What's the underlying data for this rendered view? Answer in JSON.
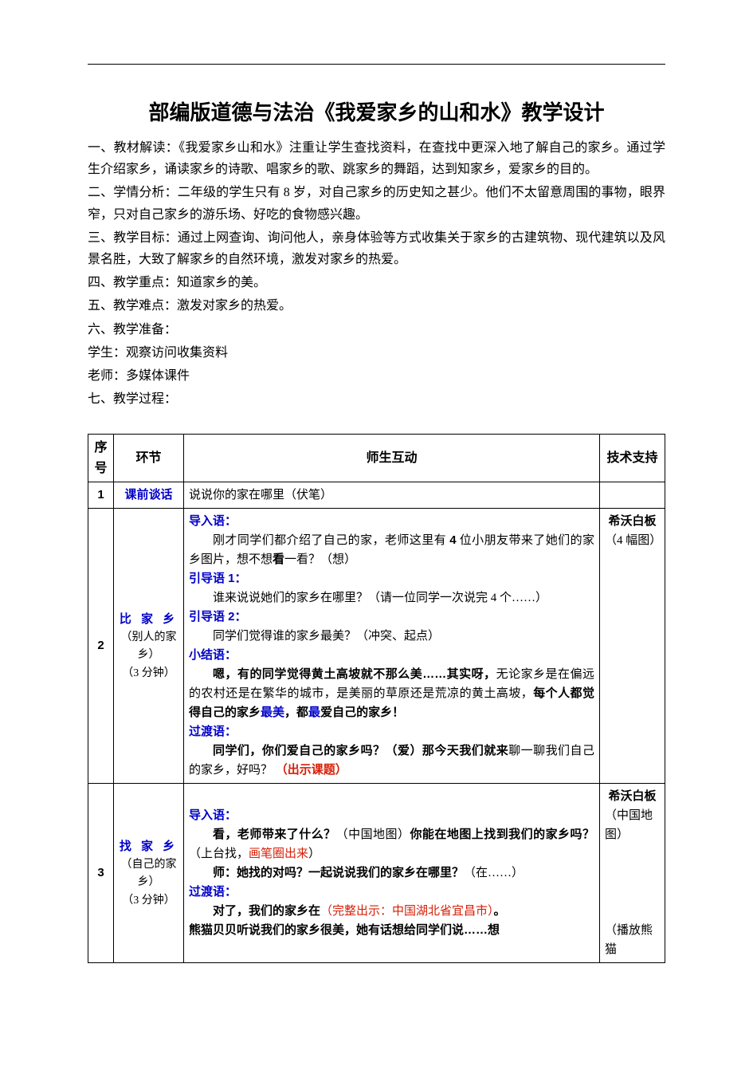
{
  "colors": {
    "text": "#000000",
    "accent_blue": "#0000c8",
    "accent_red": "#d81e06",
    "background": "#ffffff",
    "border": "#000000"
  },
  "title": "部编版道德与法治《我爱家乡的山和水》教学设计",
  "intro": {
    "p1": "一、教材解读：《我爱家乡山和水》注重让学生查找资料，在查找中更深入地了解自己的家乡。通过学生介绍家乡，诵读家乡的诗歌、唱家乡的歌、跳家乡的舞蹈，达到知家乡，爱家乡的目的。",
    "p2": "二、学情分析：二年级的学生只有 8 岁，对自己家乡的历史知之甚少。他们不太留意周围的事物，眼界窄，只对自己家乡的游乐场、好吃的食物感兴趣。",
    "p3": "三、教学目标：通过上网查询、询问他人，亲身体验等方式收集关于家乡的古建筑物、现代建筑以及风景名胜，大致了解家乡的自然环境，激发对家乡的热爱。",
    "p4": "四、教学重点：知道家乡的美。",
    "p5": "五、教学难点：激发对家乡的热爱。",
    "p6": "六、教学准备：",
    "p7": "学生：观察访问收集资料",
    "p8": "老师：多媒体课件",
    "p9": "七、教学过程："
  },
  "table": {
    "headers": {
      "num": "序号",
      "stage": "环节",
      "interaction": "师生互动",
      "tech": "技术支持"
    },
    "row1": {
      "num": "1",
      "stage_title": "课前谈话",
      "interaction": "说说你的家在哪里（伏笔）",
      "tech": ""
    },
    "row2": {
      "num": "2",
      "stage_title": "比 家 乡",
      "stage_sub1": "（别人的家乡）",
      "stage_sub2": "（3 分钟）",
      "lead_intro": "导入语：",
      "intro_text_a": "刚才同学们都介绍了自己的家，老师这里有 ",
      "intro_bold_4": "4",
      "intro_text_b": " 位小朋友带来了她们的家乡图片，想不想",
      "intro_bold_look": "看",
      "intro_text_c": "一看？（想）",
      "lead_guide1": "引导语 1：",
      "guide1_text": "谁来说说她们的家乡在哪里？（请一位同学一次说完 4 个……）",
      "lead_guide2": "引导语 2：",
      "guide2_text": "同学们觉得谁的家乡最美？（冲突、起点）",
      "lead_summary": "小结语：",
      "summary_a": "嗯，有的同学觉得黄土高坡就不那么美……其实呀，",
      "summary_b": "无论家乡是在偏远的农村还是在繁华的城市，是美丽的草原还是荒凉的黄土高坡，",
      "summary_c": "每个人都觉得自己的家乡",
      "summary_zuimei": "最美",
      "summary_d": "，都",
      "summary_zui": "最",
      "summary_e": "爱自己的家乡！",
      "lead_trans": "过渡语：",
      "trans_a": "同学们，你们爱自己的家乡吗？（爱）那今天我们就来",
      "trans_b": "聊一聊我们自己的家乡，好吗？",
      "trans_red": "（出示课题）",
      "tech_bold": "希沃白板",
      "tech_sub": "（4 幅图）"
    },
    "row3": {
      "num": "3",
      "stage_title": "找 家 乡",
      "stage_sub1": "（自己的家乡）",
      "stage_sub2": "（3 分钟）",
      "lead_intro": "导入语：",
      "intro_a": "看，老师带来了什么？",
      "intro_b": "（中国地图）",
      "intro_c": "你能在地图上找到我们的家乡吗？",
      "intro_d": "（上台找，",
      "intro_red": "画笔圈出来",
      "intro_e": "）",
      "teacher_a": "师：她找的对吗？一起说说我们的家乡在哪里？",
      "teacher_b": "（在……）",
      "lead_trans": "过渡语：",
      "trans_a": "对了，我们的家乡在",
      "trans_red": "（完整出示：中国湖北省宜昌市）",
      "trans_b": "。",
      "last": "熊猫贝贝听说我们的家乡很美，她有话想给同学们说……想",
      "tech_bold": "希沃白板",
      "tech_sub1": "（中国地图）",
      "tech_sub2": "（播放熊猫"
    }
  }
}
